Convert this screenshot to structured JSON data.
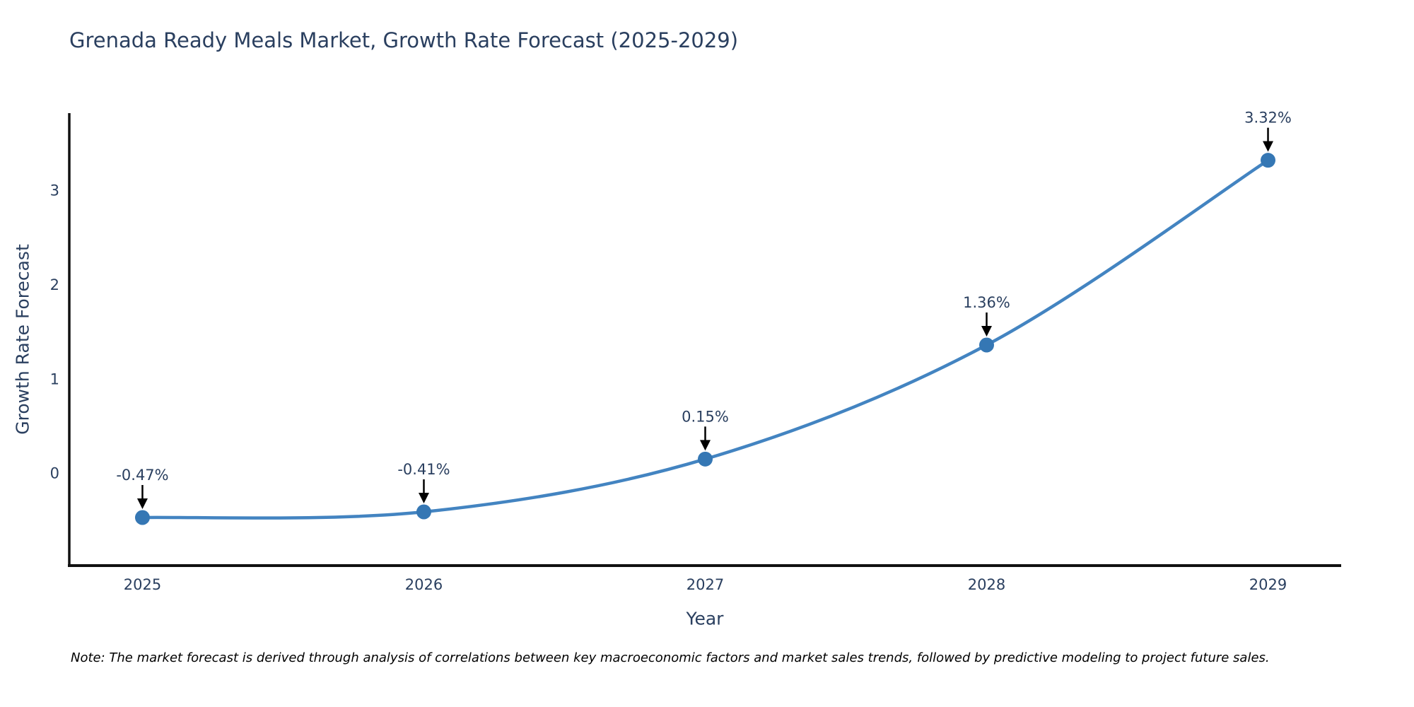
{
  "title": "Grenada Ready Meals Market, Growth Rate Forecast (2025-2029)",
  "note": "Note: The market forecast is derived through analysis of correlations between key macroeconomic factors and market sales trends, followed by predictive modeling to project future sales.",
  "chart_data": {
    "type": "line",
    "title": "Grenada Ready Meals Market, Growth Rate Forecast (2025-2029)",
    "xlabel": "Year",
    "ylabel": "Growth Rate Forecast",
    "x": [
      2025,
      2026,
      2027,
      2028,
      2029
    ],
    "y": [
      -0.47,
      -0.41,
      0.15,
      1.36,
      3.32
    ],
    "point_labels": [
      "-0.47%",
      "-0.41%",
      "0.15%",
      "1.36%",
      "3.32%"
    ],
    "xtick_labels": [
      "2025",
      "2026",
      "2027",
      "2028",
      "2029"
    ],
    "yticks": [
      0,
      1,
      2,
      3
    ],
    "xlim": [
      2024.74,
      2029.26
    ],
    "ylim": [
      -0.98,
      3.82
    ],
    "grid": false,
    "legend": false,
    "line_smooth": true,
    "colors": {
      "line": "#4384c1",
      "marker": "#3577b4",
      "axis": "#111111",
      "text": "#2a3f5f",
      "annotation_arrow": "#000000",
      "background": "#ffffff"
    }
  }
}
